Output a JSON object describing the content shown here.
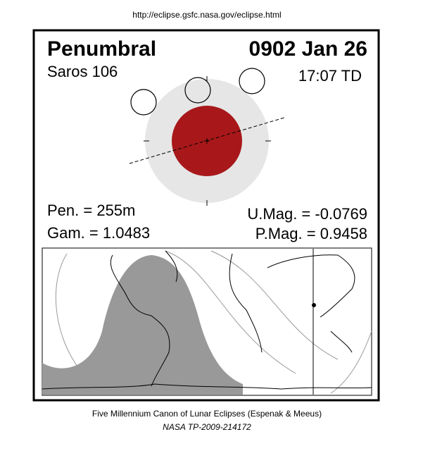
{
  "header": {
    "url": "http://eclipse.gsfc.nasa.gov/eclipse.html"
  },
  "panel": {
    "title": "Penumbral",
    "date": "0902 Jan 26",
    "saros": "Saros 106",
    "time": "17:07 TD",
    "pen": "Pen. = 255m",
    "gam": "Gam. = 1.0483",
    "umag": "U.Mag. = -0.0769",
    "pmag": "P.Mag. = 0.9458"
  },
  "footer": {
    "line1": "Five Millennium Canon of Lunar Eclipses (Espenak & Meeus)",
    "line2": "NASA TP-2009-214172"
  }
}
